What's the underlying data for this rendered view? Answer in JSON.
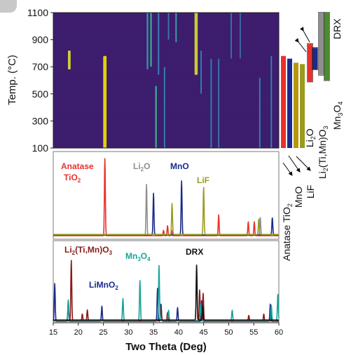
{
  "figure": {
    "colors": {
      "heatmap_bg": "#3b1a6b",
      "heatmap_grid": "#4a2d7a",
      "tio2": "#e8312f",
      "li2o": "#8f8f8f",
      "mno": "#1b2a8c",
      "lif": "#9b9a1e",
      "limno2": "#1b2a8c",
      "li2timno3": "#8b1a1a",
      "mn3o4": "#1aa39a",
      "drx": "#111111",
      "bar_lif": "#b8960f",
      "bar_drx": "#4e8a2e",
      "bar_mn3o4": "#8f8f8f"
    }
  },
  "chart_data": [
    {
      "type": "heatmap",
      "ylabel": "Temp. (°C)",
      "yticks": [
        "1100",
        "900",
        "700",
        "500",
        "300",
        "100"
      ],
      "ylim": [
        100,
        1100
      ],
      "xlim": [
        15,
        60
      ],
      "streaks": [
        {
          "x": 18.2,
          "y0": 820,
          "y1": 680,
          "color": "#dfe23a",
          "w": 1.2
        },
        {
          "x": 25.3,
          "y0": 780,
          "y1": 100,
          "color": "#f3e400",
          "w": 1.5
        },
        {
          "x": 33.8,
          "y0": 1100,
          "y1": 680,
          "color": "#36a3b8",
          "w": 0.7
        },
        {
          "x": 34.5,
          "y0": 1100,
          "y1": 700,
          "color": "#3abf8f",
          "w": 0.7
        },
        {
          "x": 35.5,
          "y0": 560,
          "y1": 100,
          "color": "#3abf8f",
          "w": 0.7
        },
        {
          "x": 36.0,
          "y0": 1100,
          "y1": 640,
          "color": "#3b7fb8",
          "w": 0.7
        },
        {
          "x": 37.2,
          "y0": 700,
          "y1": 100,
          "color": "#2e8fb5",
          "w": 0.6
        },
        {
          "x": 38.0,
          "y0": 1100,
          "y1": 900,
          "color": "#3b7fb8",
          "w": 0.6
        },
        {
          "x": 39.5,
          "y0": 1100,
          "y1": 880,
          "color": "#35b0a8",
          "w": 0.6
        },
        {
          "x": 43.5,
          "y0": 1100,
          "y1": 640,
          "color": "#d8e02c",
          "w": 1.4
        },
        {
          "x": 44.5,
          "y0": 820,
          "y1": 500,
          "color": "#2e8fb5",
          "w": 0.6
        },
        {
          "x": 46.5,
          "y0": 760,
          "y1": 100,
          "color": "#2e8fb5",
          "w": 0.6
        },
        {
          "x": 48.0,
          "y0": 760,
          "y1": 100,
          "color": "#3b7fb8",
          "w": 0.6
        },
        {
          "x": 50.5,
          "y0": 1100,
          "y1": 760,
          "color": "#2e8fb5",
          "w": 0.5
        },
        {
          "x": 52.3,
          "y0": 1100,
          "y1": 760,
          "color": "#3b7fb8",
          "w": 0.5
        },
        {
          "x": 56.2,
          "y0": 620,
          "y1": 100,
          "color": "#2e8fb5",
          "w": 0.6
        },
        {
          "x": 58.5,
          "y0": 780,
          "y1": 100,
          "color": "#2e8fb5",
          "w": 0.6
        }
      ]
    },
    {
      "type": "line",
      "xlabel": "Two Theta (Deg)",
      "xlim": [
        15,
        60
      ],
      "xticks": [
        "15",
        "20",
        "25",
        "30",
        "35",
        "40",
        "45",
        "50",
        "55",
        "60"
      ],
      "panels": [
        {
          "id": "reference",
          "series": [
            {
              "name_lines": [
                "Anatase",
                "TiO2"
              ],
              "color_key": "tio2",
              "peaks": [
                [
                  25.3,
                  1.0
                ],
                [
                  37.0,
                  0.07
                ],
                [
                  37.8,
                  0.13
                ],
                [
                  38.6,
                  0.07
                ],
                [
                  48.0,
                  0.27
                ],
                [
                  53.9,
                  0.18
                ],
                [
                  55.1,
                  0.18
                ],
                [
                  62.7,
                  0.1
                ]
              ]
            },
            {
              "name_lines": [
                "Li2O"
              ],
              "color_key": "li2o",
              "peaks": [
                [
                  33.6,
                  0.66
                ],
                [
                  56.3,
                  0.23
                ]
              ]
            },
            {
              "name_lines": [
                "MnO"
              ],
              "color_key": "mno",
              "peaks": [
                [
                  35.0,
                  0.54
                ],
                [
                  40.6,
                  0.7
                ],
                [
                  58.7,
                  0.22
                ]
              ]
            },
            {
              "name_lines": [
                "LiF"
              ],
              "color_key": "lif",
              "peaks": [
                [
                  38.7,
                  0.4
                ],
                [
                  45.0,
                  0.61
                ],
                [
                  56.0,
                  0.2
                ]
              ]
            }
          ]
        },
        {
          "id": "products",
          "series": [
            {
              "name_lines": [
                "LiMnO2"
              ],
              "color_key": "limno2",
              "peaks": [
                [
                  15.3,
                  0.55
                ],
                [
                  18.0,
                  0.28
                ],
                [
                  24.7,
                  0.22
                ],
                [
                  35.8,
                  0.48
                ],
                [
                  36.5,
                  0.25
                ],
                [
                  39.8,
                  0.2
                ],
                [
                  44.6,
                  0.3
                ],
                [
                  58.3,
                  0.25
                ]
              ]
            },
            {
              "name_lines": [
                "Li2(Ti,Mn)O3"
              ],
              "color_key": "li2timno3",
              "peaks": [
                [
                  18.6,
                  0.88
                ],
                [
                  20.8,
                  0.1
                ],
                [
                  21.8,
                  0.16
                ],
                [
                  36.5,
                  0.2
                ],
                [
                  37.8,
                  0.12
                ],
                [
                  44.2,
                  0.45
                ],
                [
                  44.9,
                  0.4
                ],
                [
                  54.0,
                  0.08
                ],
                [
                  57.0,
                  0.1
                ]
              ]
            },
            {
              "name_lines": [
                "Mn3O4"
              ],
              "color_key": "mn3o4",
              "peaks": [
                [
                  18.0,
                  0.3
                ],
                [
                  28.9,
                  0.32
                ],
                [
                  32.3,
                  0.58
                ],
                [
                  36.1,
                  0.8
                ],
                [
                  38.0,
                  0.15
                ],
                [
                  44.4,
                  0.25
                ],
                [
                  50.7,
                  0.15
                ],
                [
                  58.5,
                  0.22
                ],
                [
                  59.8,
                  0.38
                ]
              ]
            },
            {
              "name_lines": [
                "DRX"
              ],
              "color_key": "drx",
              "peaks": [
                [
                  43.6,
                  0.8
                ],
                [
                  44.8,
                  0.2
                ]
              ]
            }
          ]
        }
      ]
    },
    {
      "type": "bar",
      "bars": [
        {
          "label": "Anatase TiO2",
          "color_key": "tio2",
          "y0": 780,
          "y1": 100
        },
        {
          "label": "MnO",
          "color_key": "mno",
          "y0": 760,
          "y1": 100
        },
        {
          "label": "LiF",
          "color_key": "bar_lif",
          "y0": 730,
          "y1": 100
        },
        {
          "label": "Li2O",
          "color_key": "lif",
          "y0": 720,
          "y1": 100
        },
        {
          "label": "Li2(Ti,Mn)O3",
          "color_key": "tio2",
          "y0": 870,
          "y1": 590
        },
        {
          "label": "LiMnO2",
          "color_key": "mno",
          "y0": 840,
          "y1": 680
        },
        {
          "label": "Mn3O4",
          "color_key": "bar_mn3o4",
          "y0": 1100,
          "y1": 640
        },
        {
          "label": "DRX",
          "color_key": "bar_drx",
          "y0": 1100,
          "y1": 600
        }
      ]
    }
  ],
  "text": {
    "heatmap_ylabel": "Temp. (°C)",
    "xlabel": "Two Theta (Deg)",
    "label_anatase": "Anatase",
    "label_tio2_ti": "TiO",
    "label_tio2_sub": "2",
    "label_li2o_li": "Li",
    "label_li2o_sub": "2",
    "label_li2o_o": "O",
    "label_mno": "MnO",
    "label_lif": "LiF",
    "label_li2timno3_a": "Li",
    "label_li2timno3_sub1": "2",
    "label_li2timno3_b": "(Ti,Mn)O",
    "label_li2timno3_sub2": "3",
    "label_mn3o4_a": "Mn",
    "label_mn3o4_sub1": "3",
    "label_mn3o4_b": "O",
    "label_mn3o4_sub2": "4",
    "label_limno2_a": "LiMnO",
    "label_limno2_sub": "2",
    "label_drx": "DRX",
    "side_drx": "DRX",
    "side_mn3o4_a": "Mn",
    "side_mn3o4_s1": "3",
    "side_mn3o4_b": "O",
    "side_mn3o4_s2": "4",
    "side_li2o_a": "Li",
    "side_li2o_s": "2",
    "side_li2o_b": "O",
    "side_litimn_a": "Li",
    "side_litimn_s1": "2",
    "side_litimn_b": "(Ti,Mn)O",
    "side_litimn_s2": "3",
    "side_anatase_a": "Anatase TiO",
    "side_anatase_s": "2",
    "side_mno": "MnO",
    "side_lif": "LiF"
  }
}
